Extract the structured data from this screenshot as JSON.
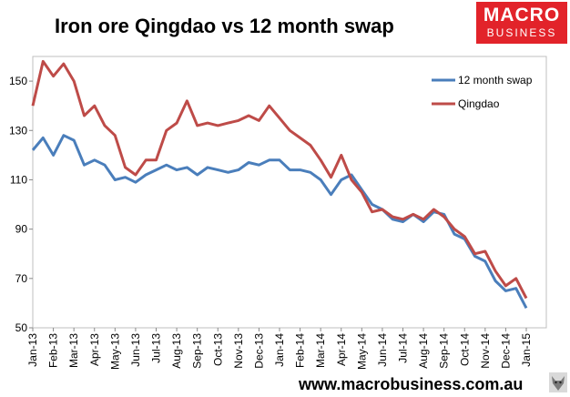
{
  "chart_data": {
    "type": "line",
    "title": "Iron ore Qingdao vs 12 month swap",
    "xlabel": "",
    "ylabel": "",
    "ylim": [
      50,
      160
    ],
    "yticks": [
      50,
      70,
      90,
      110,
      130,
      150
    ],
    "grid": false,
    "legend_position": "top-right",
    "x_tick_labels": [
      "Jan-13",
      "Feb-13",
      "Mar-13",
      "Apr-13",
      "May-13",
      "Jun-13",
      "Jul-13",
      "Aug-13",
      "Sep-13",
      "Oct-13",
      "Nov-13",
      "Dec-13",
      "Jan-14",
      "Feb-14",
      "Mar-14",
      "Apr-14",
      "May-14",
      "Jun-14",
      "Jul-14",
      "Aug-14",
      "Sep-14",
      "Oct-14",
      "Nov-14",
      "Dec-14",
      "Jan-15"
    ],
    "x_months": [
      0,
      0.5,
      1,
      1.5,
      2,
      2.5,
      3,
      3.5,
      4,
      4.5,
      5,
      5.5,
      6,
      6.5,
      7,
      7.5,
      8,
      8.5,
      9,
      9.5,
      10,
      10.5,
      11,
      11.5,
      12,
      12.5,
      13,
      13.5,
      14,
      14.5,
      15,
      15.5,
      16,
      16.5,
      17,
      17.5,
      18,
      18.5,
      19,
      19.5,
      20,
      20.5,
      21,
      21.5,
      22,
      22.5,
      23,
      23.5,
      24
    ],
    "series": [
      {
        "name": "12 month swap",
        "color": "#4a7ebb",
        "values": [
          122,
          127,
          120,
          128,
          126,
          116,
          118,
          116,
          110,
          111,
          109,
          112,
          114,
          116,
          114,
          115,
          112,
          115,
          114,
          113,
          114,
          117,
          116,
          118,
          118,
          114,
          114,
          113,
          110,
          104,
          110,
          112,
          106,
          100,
          98,
          94,
          93,
          96,
          93,
          97,
          96,
          88,
          86,
          79,
          77,
          69,
          65,
          66,
          58
        ]
      },
      {
        "name": "Qingdao",
        "color": "#be4b48",
        "values": [
          140,
          158,
          152,
          157,
          150,
          136,
          140,
          132,
          128,
          115,
          112,
          118,
          118,
          130,
          133,
          142,
          132,
          133,
          132,
          133,
          134,
          136,
          134,
          140,
          135,
          130,
          127,
          124,
          118,
          111,
          120,
          110,
          105,
          97,
          98,
          95,
          94,
          96,
          94,
          98,
          95,
          90,
          87,
          80,
          81,
          73,
          67,
          70,
          62
        ]
      }
    ]
  },
  "logo": {
    "line1": "MACRO",
    "line2": "BUSINESS"
  },
  "footer": {
    "url": "www.macrobusiness.com.au"
  }
}
